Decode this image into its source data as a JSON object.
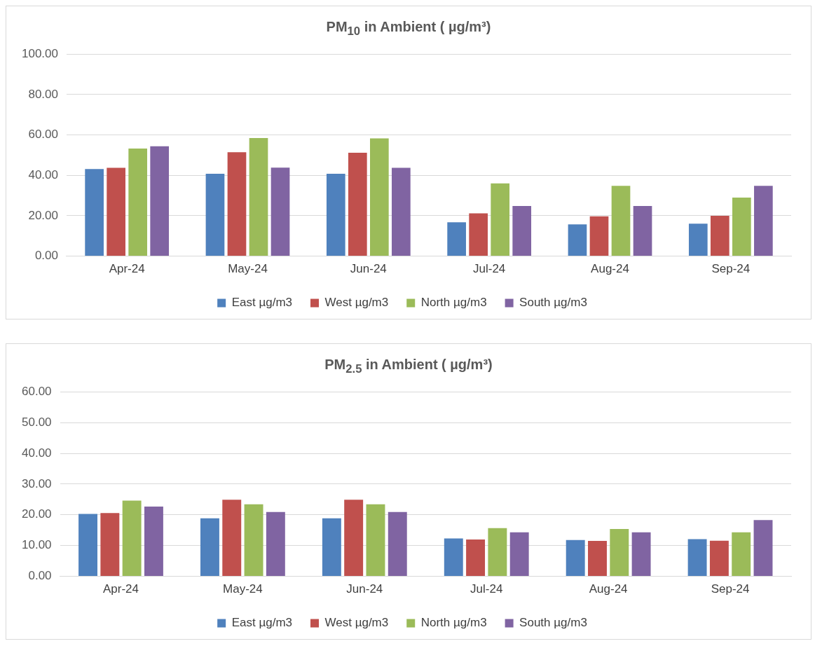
{
  "chart_data": [
    {
      "type": "bar",
      "title": "PM$_{10}$ in Ambient  ( µg/m³)",
      "categories": [
        "Apr-24",
        "May-24",
        "Jun-24",
        "Jul-24",
        "Aug-24",
        "Sep-24"
      ],
      "series": [
        {
          "name": "East µg/m3",
          "color": "#4f81bd",
          "values": [
            43.1,
            40.8,
            40.8,
            16.8,
            15.7,
            16.1
          ]
        },
        {
          "name": "West µg/m3",
          "color": "#c0504d",
          "values": [
            43.7,
            51.4,
            51.2,
            21.2,
            19.7,
            20.0
          ]
        },
        {
          "name": "North µg/m3",
          "color": "#9bbb59",
          "values": [
            53.3,
            58.5,
            58.3,
            36.0,
            34.8,
            29.0
          ]
        },
        {
          "name": "South µg/m3",
          "color": "#8064a2",
          "values": [
            54.4,
            43.8,
            43.7,
            24.8,
            24.8,
            34.8
          ]
        }
      ],
      "ylim": [
        0,
        100
      ],
      "yticks": [
        {
          "value": 0,
          "label": "0.00"
        },
        {
          "value": 20,
          "label": "20.00"
        },
        {
          "value": 40,
          "label": "40.00"
        },
        {
          "value": 60,
          "label": "60.00"
        },
        {
          "value": 80,
          "label": "80.00"
        },
        {
          "value": 100,
          "label": "100.00"
        }
      ],
      "grid": "y",
      "legend": "bottom"
    },
    {
      "type": "bar",
      "title": "PM$_{2.5}$ in Ambient  ( µg/m³)",
      "categories": [
        "Apr-24",
        "May-24",
        "Jun-24",
        "Jul-24",
        "Aug-24",
        "Sep-24"
      ],
      "series": [
        {
          "name": "East µg/m3",
          "color": "#4f81bd",
          "values": [
            20.3,
            18.9,
            18.9,
            12.3,
            11.8,
            12.1
          ]
        },
        {
          "name": "West µg/m3",
          "color": "#c0504d",
          "values": [
            20.6,
            24.9,
            24.9,
            12.0,
            11.5,
            11.6
          ]
        },
        {
          "name": "North µg/m3",
          "color": "#9bbb59",
          "values": [
            24.6,
            23.4,
            23.4,
            15.7,
            15.4,
            14.3
          ]
        },
        {
          "name": "South µg/m3",
          "color": "#8064a2",
          "values": [
            22.7,
            20.9,
            20.9,
            14.3,
            14.3,
            18.3
          ]
        }
      ],
      "ylim": [
        0,
        60
      ],
      "yticks": [
        {
          "value": 0,
          "label": "0.00"
        },
        {
          "value": 10,
          "label": "10.00"
        },
        {
          "value": 20,
          "label": "20.00"
        },
        {
          "value": 30,
          "label": "30.00"
        },
        {
          "value": 40,
          "label": "40.00"
        },
        {
          "value": 50,
          "label": "50.00"
        },
        {
          "value": 60,
          "label": "60.00"
        }
      ],
      "grid": "y",
      "legend": "bottom"
    }
  ]
}
